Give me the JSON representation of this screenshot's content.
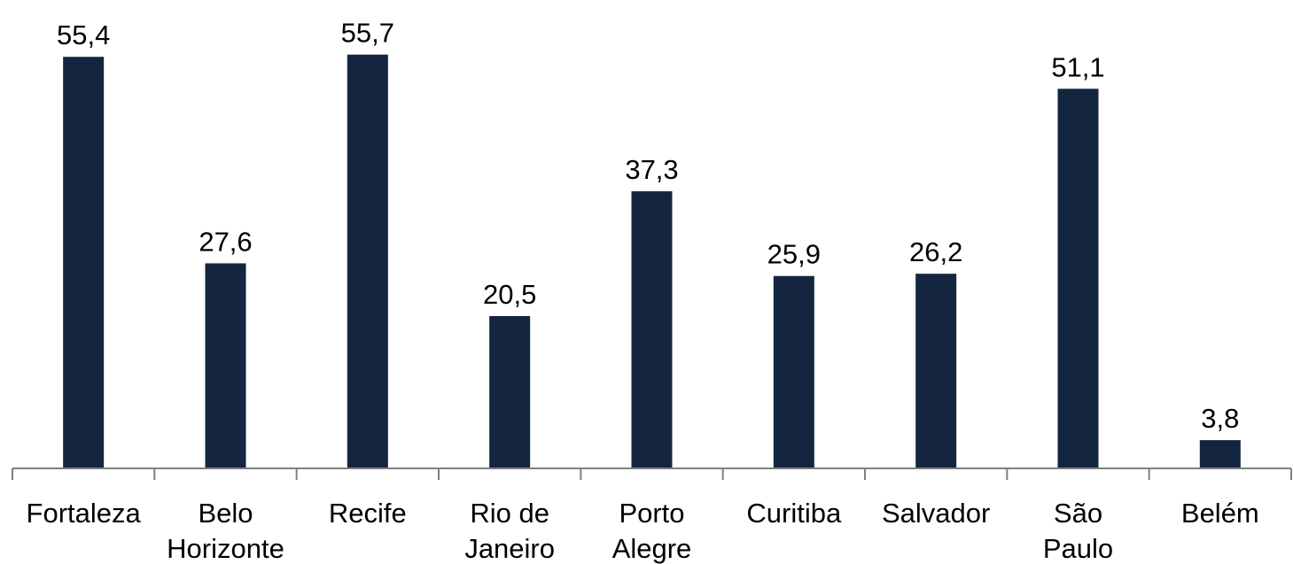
{
  "chart_data": {
    "type": "bar",
    "title": "",
    "xlabel": "",
    "ylabel": "",
    "categories": [
      [
        "Fortaleza"
      ],
      [
        "Belo",
        "Horizonte"
      ],
      [
        "Recife"
      ],
      [
        "Rio de",
        "Janeiro"
      ],
      [
        "Porto",
        "Alegre"
      ],
      [
        "Curitiba"
      ],
      [
        "Salvador"
      ],
      [
        "São",
        "Paulo"
      ],
      [
        "Belém"
      ]
    ],
    "values": [
      55.4,
      27.6,
      55.7,
      20.5,
      37.3,
      25.9,
      26.2,
      51.1,
      3.8
    ],
    "value_labels": [
      "55,4",
      "27,6",
      "55,7",
      "20,5",
      "37,3",
      "25,9",
      "26,2",
      "51,1",
      "3,8"
    ],
    "ylim": [
      0,
      60
    ],
    "grid": false,
    "bar_color": "#14263f",
    "axis_color": "#7f7f7f"
  }
}
